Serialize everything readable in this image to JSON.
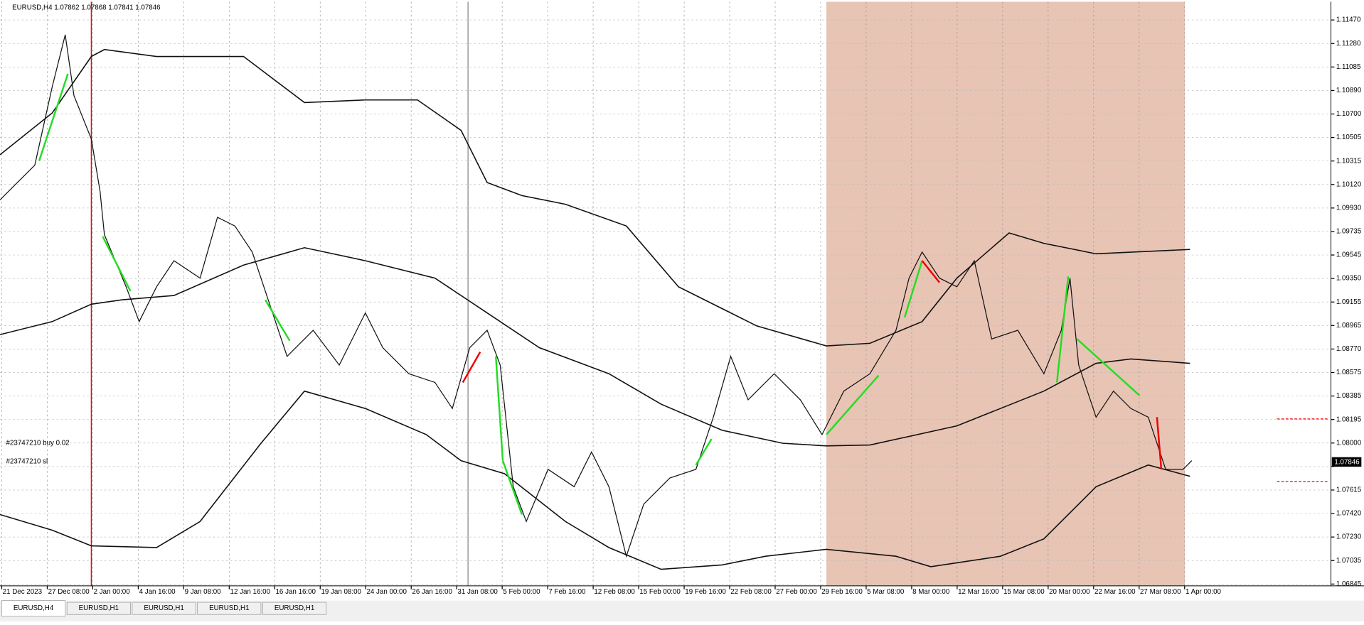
{
  "header": {
    "symbol_info": "EURUSD,H4  1.07862 1.07868 1.07841 1.07846"
  },
  "price_axis": {
    "labels": [
      "1.11470",
      "1.11280",
      "1.11085",
      "1.10890",
      "1.10700",
      "1.10505",
      "1.10315",
      "1.10120",
      "1.09930",
      "1.09735",
      "1.09545",
      "1.09350",
      "1.09155",
      "1.08965",
      "1.08770",
      "1.08575",
      "1.08385",
      "1.08195",
      "1.08000",
      null,
      "1.07615",
      "1.07420",
      "1.07230",
      "1.07035",
      "1.06845"
    ],
    "current": "1.07846"
  },
  "time_axis": {
    "labels": [
      "21 Dec 2023",
      "27 Dec 08:00",
      "2 Jan 00:00",
      "4 Jan 16:00",
      "9 Jan 08:00",
      "12 Jan 16:00",
      "16 Jan 16:00",
      "19 Jan 08:00",
      "24 Jan 00:00",
      "26 Jan 16:00",
      "31 Jan 08:00",
      "5 Feb 00:00",
      "7 Feb 16:00",
      "12 Feb 08:00",
      "15 Feb 00:00",
      "19 Feb 16:00",
      "22 Feb 08:00",
      "27 Feb 00:00",
      "29 Feb 16:00",
      "5 Mar 08:00",
      "8 Mar 00:00",
      "12 Mar 16:00",
      "15 Mar 08:00",
      "20 Mar 00:00",
      "22 Mar 16:00",
      "27 Mar 08:00",
      "1 Apr 00:00"
    ]
  },
  "annotations": [
    "#23747210 buy 0.02",
    "#23747210 sl"
  ],
  "tabs": [
    "EURUSD,H4",
    "EURUSD,H1",
    "EURUSD,H1",
    "EURUSD,H1",
    "EURUSD,H1"
  ]
}
